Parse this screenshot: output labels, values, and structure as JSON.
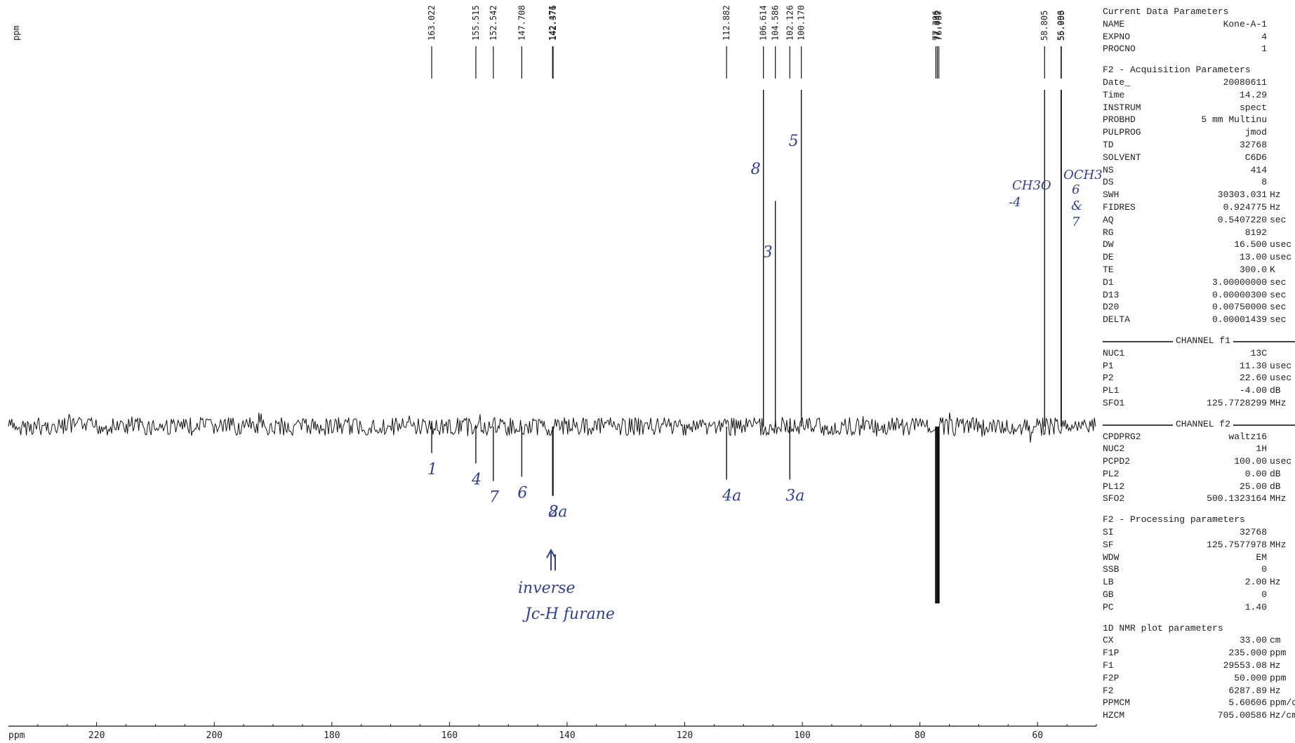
{
  "chart_data": {
    "type": "line",
    "title": "",
    "xlabel": "ppm",
    "ylabel": "ppm",
    "xlim": [
      235,
      50
    ],
    "x_reversed": true,
    "xticks": [
      220,
      200,
      180,
      160,
      140,
      120,
      100,
      80,
      60
    ],
    "baseline_noise": true,
    "peaks": [
      {
        "ppm": 163.022,
        "label": "163.022",
        "sign": "negative",
        "height": 0.18,
        "assignment": "1"
      },
      {
        "ppm": 155.515,
        "label": "155.515",
        "sign": "negative",
        "height": 0.25,
        "assignment": "4"
      },
      {
        "ppm": 152.542,
        "label": "152.542",
        "sign": "negative",
        "height": 0.37,
        "assignment": "7"
      },
      {
        "ppm": 147.708,
        "label": "147.708",
        "sign": "negative",
        "height": 0.34,
        "assignment": "6"
      },
      {
        "ppm": 142.471,
        "label": "142.471",
        "sign": "negative",
        "height": 0.47,
        "assignment": "8a"
      },
      {
        "ppm": 142.376,
        "label": "142.376",
        "sign": "negative",
        "height": 0.47,
        "assignment": "2"
      },
      {
        "ppm": 112.882,
        "label": "112.882",
        "sign": "negative",
        "height": 0.36,
        "assignment": "4a"
      },
      {
        "ppm": 106.614,
        "label": "106.614",
        "sign": "positive",
        "height": 1.0,
        "assignment": "8"
      },
      {
        "ppm": 104.586,
        "label": "104.586",
        "sign": "positive",
        "height": 0.67,
        "assignment": "3"
      },
      {
        "ppm": 102.126,
        "label": "102.126",
        "sign": "negative",
        "height": 0.36,
        "assignment": "3a"
      },
      {
        "ppm": 100.17,
        "label": "100.170",
        "sign": "positive",
        "height": 1.0,
        "assignment": "5"
      },
      {
        "ppm": 77.296,
        "label": "77.296",
        "sign": "negative",
        "height": 1.2,
        "assignment": ""
      },
      {
        "ppm": 77.042,
        "label": "77.042",
        "sign": "negative",
        "height": 1.2,
        "assignment": ""
      },
      {
        "ppm": 76.787,
        "label": "76.787",
        "sign": "negative",
        "height": 1.2,
        "assignment": ""
      },
      {
        "ppm": 58.805,
        "label": "58.805",
        "sign": "positive",
        "height": 1.0,
        "assignment": "OCH3-4"
      },
      {
        "ppm": 56.006,
        "label": "56.006",
        "sign": "positive",
        "height": 1.0,
        "assignment": "OCH3-6 & 7"
      },
      {
        "ppm": 55.953,
        "label": "55.953",
        "sign": "positive",
        "height": 1.0,
        "assignment": ""
      }
    ]
  },
  "annotations": {
    "inverse_line1": "inverse",
    "inverse_line2": "Jc-H furane",
    "och3_left_1": "CH3O",
    "och3_left_2": "-4",
    "och3_right_1": "OCH3",
    "och3_right_2": "6",
    "och3_right_3": "&",
    "och3_right_4": "7"
  },
  "params": {
    "current_title": "Current Data Parameters",
    "current": [
      {
        "k": "NAME",
        "v": "Kone-A-1",
        "u": ""
      },
      {
        "k": "EXPNO",
        "v": "4",
        "u": ""
      },
      {
        "k": "PROCNO",
        "v": "1",
        "u": ""
      }
    ],
    "acq_title": "F2 - Acquisition Parameters",
    "acq": [
      {
        "k": "Date_",
        "v": "20080611",
        "u": ""
      },
      {
        "k": "Time",
        "v": "14.29",
        "u": ""
      },
      {
        "k": "INSTRUM",
        "v": "spect",
        "u": ""
      },
      {
        "k": "PROBHD",
        "v": "5 mm Multinu",
        "u": ""
      },
      {
        "k": "PULPROG",
        "v": "jmod",
        "u": ""
      },
      {
        "k": "TD",
        "v": "32768",
        "u": ""
      },
      {
        "k": "SOLVENT",
        "v": "C6D6",
        "u": ""
      },
      {
        "k": "NS",
        "v": "414",
        "u": ""
      },
      {
        "k": "DS",
        "v": "8",
        "u": ""
      },
      {
        "k": "SWH",
        "v": "30303.031",
        "u": "Hz"
      },
      {
        "k": "FIDRES",
        "v": "0.924775",
        "u": "Hz"
      },
      {
        "k": "AQ",
        "v": "0.5407220",
        "u": "sec"
      },
      {
        "k": "RG",
        "v": "8192",
        "u": ""
      },
      {
        "k": "DW",
        "v": "16.500",
        "u": "usec"
      },
      {
        "k": "DE",
        "v": "13.00",
        "u": "usec"
      },
      {
        "k": "TE",
        "v": "300.0",
        "u": "K"
      },
      {
        "k": "D1",
        "v": "3.00000000",
        "u": "sec"
      },
      {
        "k": "D13",
        "v": "0.00000300",
        "u": "sec"
      },
      {
        "k": "D20",
        "v": "0.00750000",
        "u": "sec"
      },
      {
        "k": "DELTA",
        "v": "0.00001439",
        "u": "sec"
      }
    ],
    "ch1_title": "CHANNEL f1",
    "ch1": [
      {
        "k": "NUC1",
        "v": "13C",
        "u": ""
      },
      {
        "k": "P1",
        "v": "11.30",
        "u": "usec"
      },
      {
        "k": "P2",
        "v": "22.60",
        "u": "usec"
      },
      {
        "k": "PL1",
        "v": "-4.00",
        "u": "dB"
      },
      {
        "k": "SFO1",
        "v": "125.7728299",
        "u": "MHz"
      }
    ],
    "ch2_title": "CHANNEL f2",
    "ch2": [
      {
        "k": "CPDPRG2",
        "v": "waltz16",
        "u": ""
      },
      {
        "k": "NUC2",
        "v": "1H",
        "u": ""
      },
      {
        "k": "PCPD2",
        "v": "100.00",
        "u": "usec"
      },
      {
        "k": "PL2",
        "v": "0.00",
        "u": "dB"
      },
      {
        "k": "PL12",
        "v": "25.00",
        "u": "dB"
      },
      {
        "k": "SFO2",
        "v": "500.1323164",
        "u": "MHz"
      }
    ],
    "proc_title": "F2 - Processing parameters",
    "proc": [
      {
        "k": "SI",
        "v": "32768",
        "u": ""
      },
      {
        "k": "SF",
        "v": "125.7577978",
        "u": "MHz"
      },
      {
        "k": "WDW",
        "v": "EM",
        "u": ""
      },
      {
        "k": "SSB",
        "v": "0",
        "u": ""
      },
      {
        "k": "LB",
        "v": "2.00",
        "u": "Hz"
      },
      {
        "k": "GB",
        "v": "0",
        "u": ""
      },
      {
        "k": "PC",
        "v": "1.40",
        "u": ""
      }
    ],
    "plot_title": "1D NMR plot parameters",
    "plot": [
      {
        "k": "CX",
        "v": "33.00",
        "u": "cm"
      },
      {
        "k": "F1P",
        "v": "235.000",
        "u": "ppm"
      },
      {
        "k": "F1",
        "v": "29553.08",
        "u": "Hz"
      },
      {
        "k": "F2P",
        "v": "50.000",
        "u": "ppm"
      },
      {
        "k": "F2",
        "v": "6287.89",
        "u": "Hz"
      },
      {
        "k": "PPMCM",
        "v": "5.60606",
        "u": "ppm/cm"
      },
      {
        "k": "HZCM",
        "v": "705.00586",
        "u": "Hz/cm"
      }
    ]
  }
}
